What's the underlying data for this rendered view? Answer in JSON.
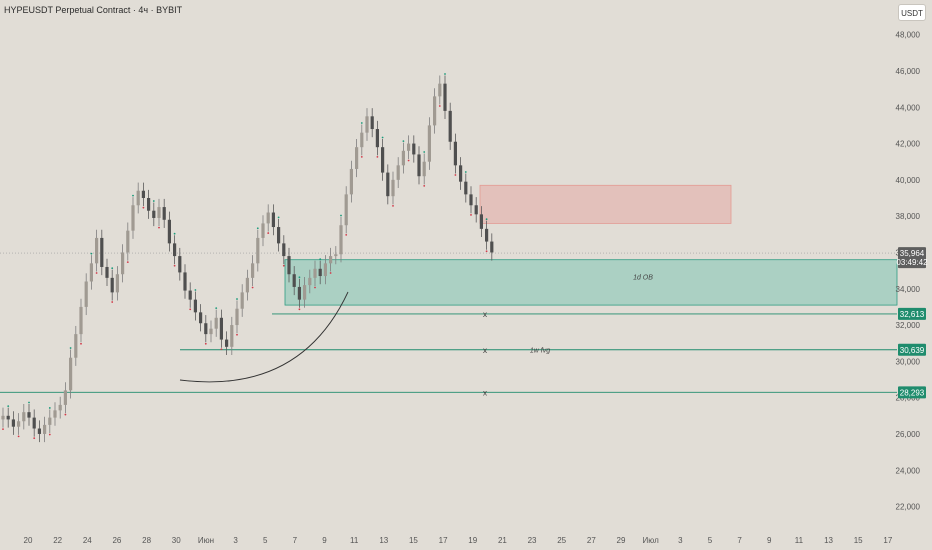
{
  "header": {
    "title": "HYPEUSDT Perpetual Contract · 4ч · BYBIT",
    "currency_button": "USDT"
  },
  "chart_data": {
    "type": "candlestick",
    "y_ticks": [
      "48,000",
      "46,000",
      "44,000",
      "42,000",
      "40,000",
      "38,000",
      "36,000",
      "34,000",
      "32,000",
      "30,000",
      "28,000",
      "26,000",
      "24,000",
      "22,000"
    ],
    "x_ticks": [
      "20",
      "22",
      "24",
      "26",
      "28",
      "30",
      "Июн",
      "3",
      "5",
      "7",
      "9",
      "11",
      "13",
      "15",
      "17",
      "19",
      "21",
      "23",
      "25",
      "27",
      "29",
      "Июл",
      "3",
      "5",
      "7",
      "9",
      "11",
      "13",
      "15",
      "17"
    ],
    "current_price": "35,964",
    "countdown": "03:49:42",
    "levels": [
      {
        "price": "32,613",
        "label": "x"
      },
      {
        "price": "30,639",
        "label": "x"
      },
      {
        "price": "28,293",
        "label": "x"
      }
    ],
    "zones": [
      {
        "kind": "supply",
        "top": 39.7,
        "bottom": 37.6,
        "label": ""
      },
      {
        "kind": "demand",
        "top": 35.6,
        "bottom": 33.1,
        "label": "1d OB"
      },
      {
        "kind": "fvg",
        "label": "1w fvg"
      }
    ],
    "series": [
      {
        "values": [
          27.0,
          26.8,
          26.4,
          26.7,
          27.2,
          26.9,
          26.3,
          26.0,
          26.5,
          26.9,
          27.3,
          27.6,
          28.4,
          30.2,
          31.5,
          33.0,
          34.4,
          35.4,
          36.8,
          35.2,
          34.6,
          33.8,
          34.8,
          36.0,
          37.2,
          38.6,
          39.4,
          39.0,
          38.3,
          37.9,
          38.5,
          37.8,
          36.5,
          35.8,
          34.9,
          33.9,
          33.4,
          32.7,
          32.1,
          31.5,
          31.8,
          32.4,
          31.2,
          30.8,
          32.0,
          32.9,
          33.8,
          34.6,
          35.4,
          36.8,
          37.6,
          38.2,
          37.4,
          36.5,
          35.8,
          34.8,
          34.1,
          33.4,
          34.2,
          34.6,
          35.1,
          34.7,
          35.4,
          35.8,
          35.9,
          37.5,
          39.2,
          40.6,
          41.8,
          42.6,
          43.5,
          42.8,
          41.8,
          40.4,
          39.1,
          40.0,
          40.8,
          41.6,
          42.0,
          41.4,
          40.2,
          41.0,
          43.0,
          44.6,
          45.3,
          43.8,
          42.1,
          40.8,
          39.9,
          39.2,
          38.6,
          38.1,
          37.3,
          36.6,
          36.0
        ]
      }
    ]
  }
}
